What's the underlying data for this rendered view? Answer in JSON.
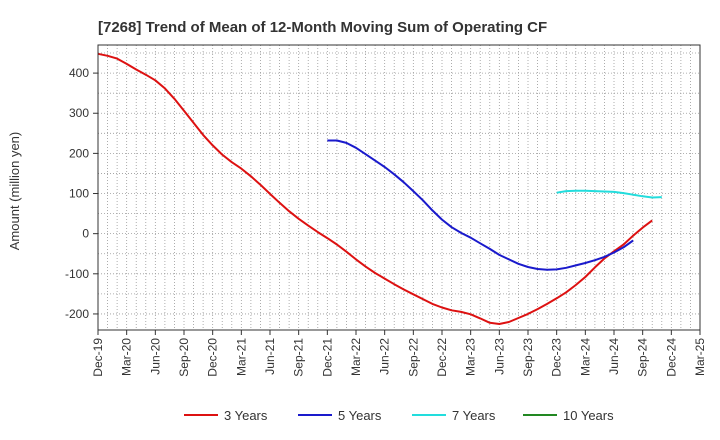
{
  "chart_data": {
    "type": "line",
    "title": "[7268]  Trend of Mean of 12-Month Moving Sum of Operating CF",
    "xlabel": "",
    "ylabel": "Amount (million yen)",
    "ylim": [
      -240,
      470
    ],
    "yticks": [
      -200,
      -100,
      0,
      100,
      200,
      300,
      400
    ],
    "x_tick_labels": [
      "Dec-19",
      "Mar-20",
      "Jun-20",
      "Sep-20",
      "Dec-20",
      "Mar-21",
      "Jun-21",
      "Sep-21",
      "Dec-21",
      "Mar-22",
      "Jun-22",
      "Sep-22",
      "Dec-22",
      "Mar-23",
      "Jun-23",
      "Sep-23",
      "Dec-23",
      "Mar-24",
      "Jun-24",
      "Sep-24",
      "Dec-24",
      "Mar-25"
    ],
    "grid": true,
    "legend_position": "bottom",
    "series": [
      {
        "name": "3 Years",
        "color": "#dd1111",
        "values": [
          448,
          443,
          436,
          423,
          409,
          396,
          382,
          362,
          336,
          306,
          276,
          246,
          220,
          197,
          178,
          162,
          143,
          122,
          99,
          77,
          56,
          37,
          20,
          4,
          -11,
          -27,
          -45,
          -64,
          -82,
          -98,
          -112,
          -126,
          -139,
          -151,
          -163,
          -175,
          -184,
          -191,
          -195,
          -201,
          -211,
          -222,
          -225,
          -220,
          -210,
          -200,
          -188,
          -175,
          -161,
          -146,
          -128,
          -108,
          -84,
          -62,
          -44,
          -27,
          -5,
          15,
          33
        ]
      },
      {
        "name": "5 Years",
        "color": "#1a1acc",
        "start_index": 24,
        "values": [
          232,
          232,
          226,
          214,
          198,
          182,
          166,
          148,
          128,
          106,
          83,
          58,
          35,
          16,
          2,
          -10,
          -24,
          -38,
          -53,
          -64,
          -75,
          -83,
          -88,
          -90,
          -89,
          -85,
          -79,
          -73,
          -66,
          -58,
          -47,
          -34,
          -17
        ]
      },
      {
        "name": "7 Years",
        "color": "#22dddd",
        "start_index": 48,
        "values": [
          102,
          106,
          107,
          107,
          106,
          105,
          104,
          101,
          97,
          93,
          90,
          91
        ]
      },
      {
        "name": "10 Years",
        "color": "#228822",
        "values": []
      }
    ]
  }
}
